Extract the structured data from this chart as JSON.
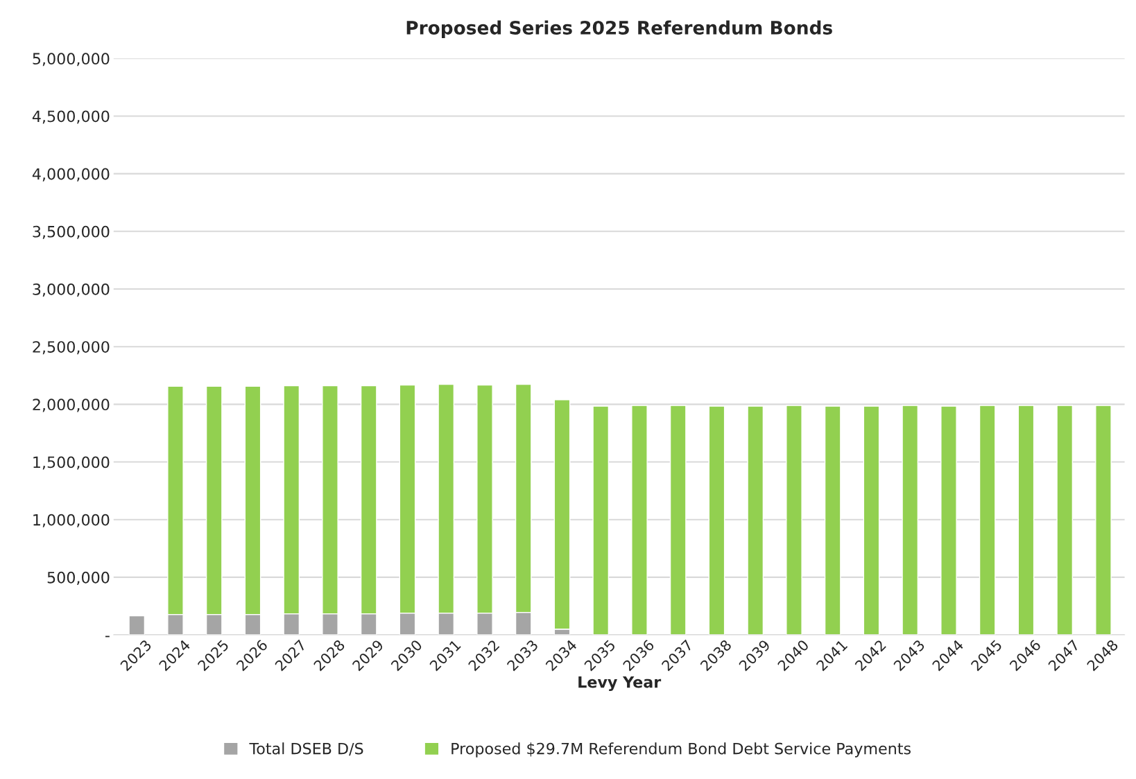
{
  "chart_data": {
    "type": "bar",
    "stacked": true,
    "title": "Proposed Series 2025 Referendum Bonds",
    "xlabel": "Levy Year",
    "categories": [
      "2023",
      "2024",
      "2025",
      "2026",
      "2027",
      "2028",
      "2029",
      "2030",
      "2031",
      "2032",
      "2033",
      "2034",
      "2035",
      "2036",
      "2037",
      "2038",
      "2039",
      "2040",
      "2041",
      "2042",
      "2043",
      "2044",
      "2045",
      "2046",
      "2047",
      "2048"
    ],
    "series": [
      {
        "name": "Total DSEB D/S",
        "color": "#a5a5a5",
        "values": [
          165000,
          177000,
          177000,
          177000,
          183000,
          183000,
          183000,
          189000,
          189000,
          189000,
          195000,
          50000,
          null,
          null,
          null,
          null,
          null,
          null,
          null,
          null,
          null,
          null,
          null,
          null,
          null,
          null
        ]
      },
      {
        "name": "Proposed $29.7M Referendum Bond Debt Service Payments",
        "color": "#92d050",
        "values": [
          null,
          1980000,
          1980000,
          1980000,
          1978000,
          1978000,
          1978000,
          1978000,
          1984000,
          1978000,
          1978000,
          1990000,
          1984000,
          1990000,
          1990000,
          1984000,
          1984000,
          1990000,
          1984000,
          1984000,
          1990000,
          1984000,
          1990000,
          1990000,
          1990000,
          1990000
        ]
      }
    ],
    "ylim": [
      0,
      5000000
    ],
    "yticks": [
      {
        "value": 0,
        "label": "-"
      },
      {
        "value": 500000,
        "label": "500,000"
      },
      {
        "value": 1000000,
        "label": "1,000,000"
      },
      {
        "value": 1500000,
        "label": "1,500,000"
      },
      {
        "value": 2000000,
        "label": "2,000,000"
      },
      {
        "value": 2500000,
        "label": "2,500,000"
      },
      {
        "value": 3000000,
        "label": "3,000,000"
      },
      {
        "value": 3500000,
        "label": "3,500,000"
      },
      {
        "value": 4000000,
        "label": "4,000,000"
      },
      {
        "value": 4500000,
        "label": "4,500,000"
      },
      {
        "value": 5000000,
        "label": "5,000,000"
      }
    ],
    "grid": "y",
    "legend": "bottom"
  }
}
